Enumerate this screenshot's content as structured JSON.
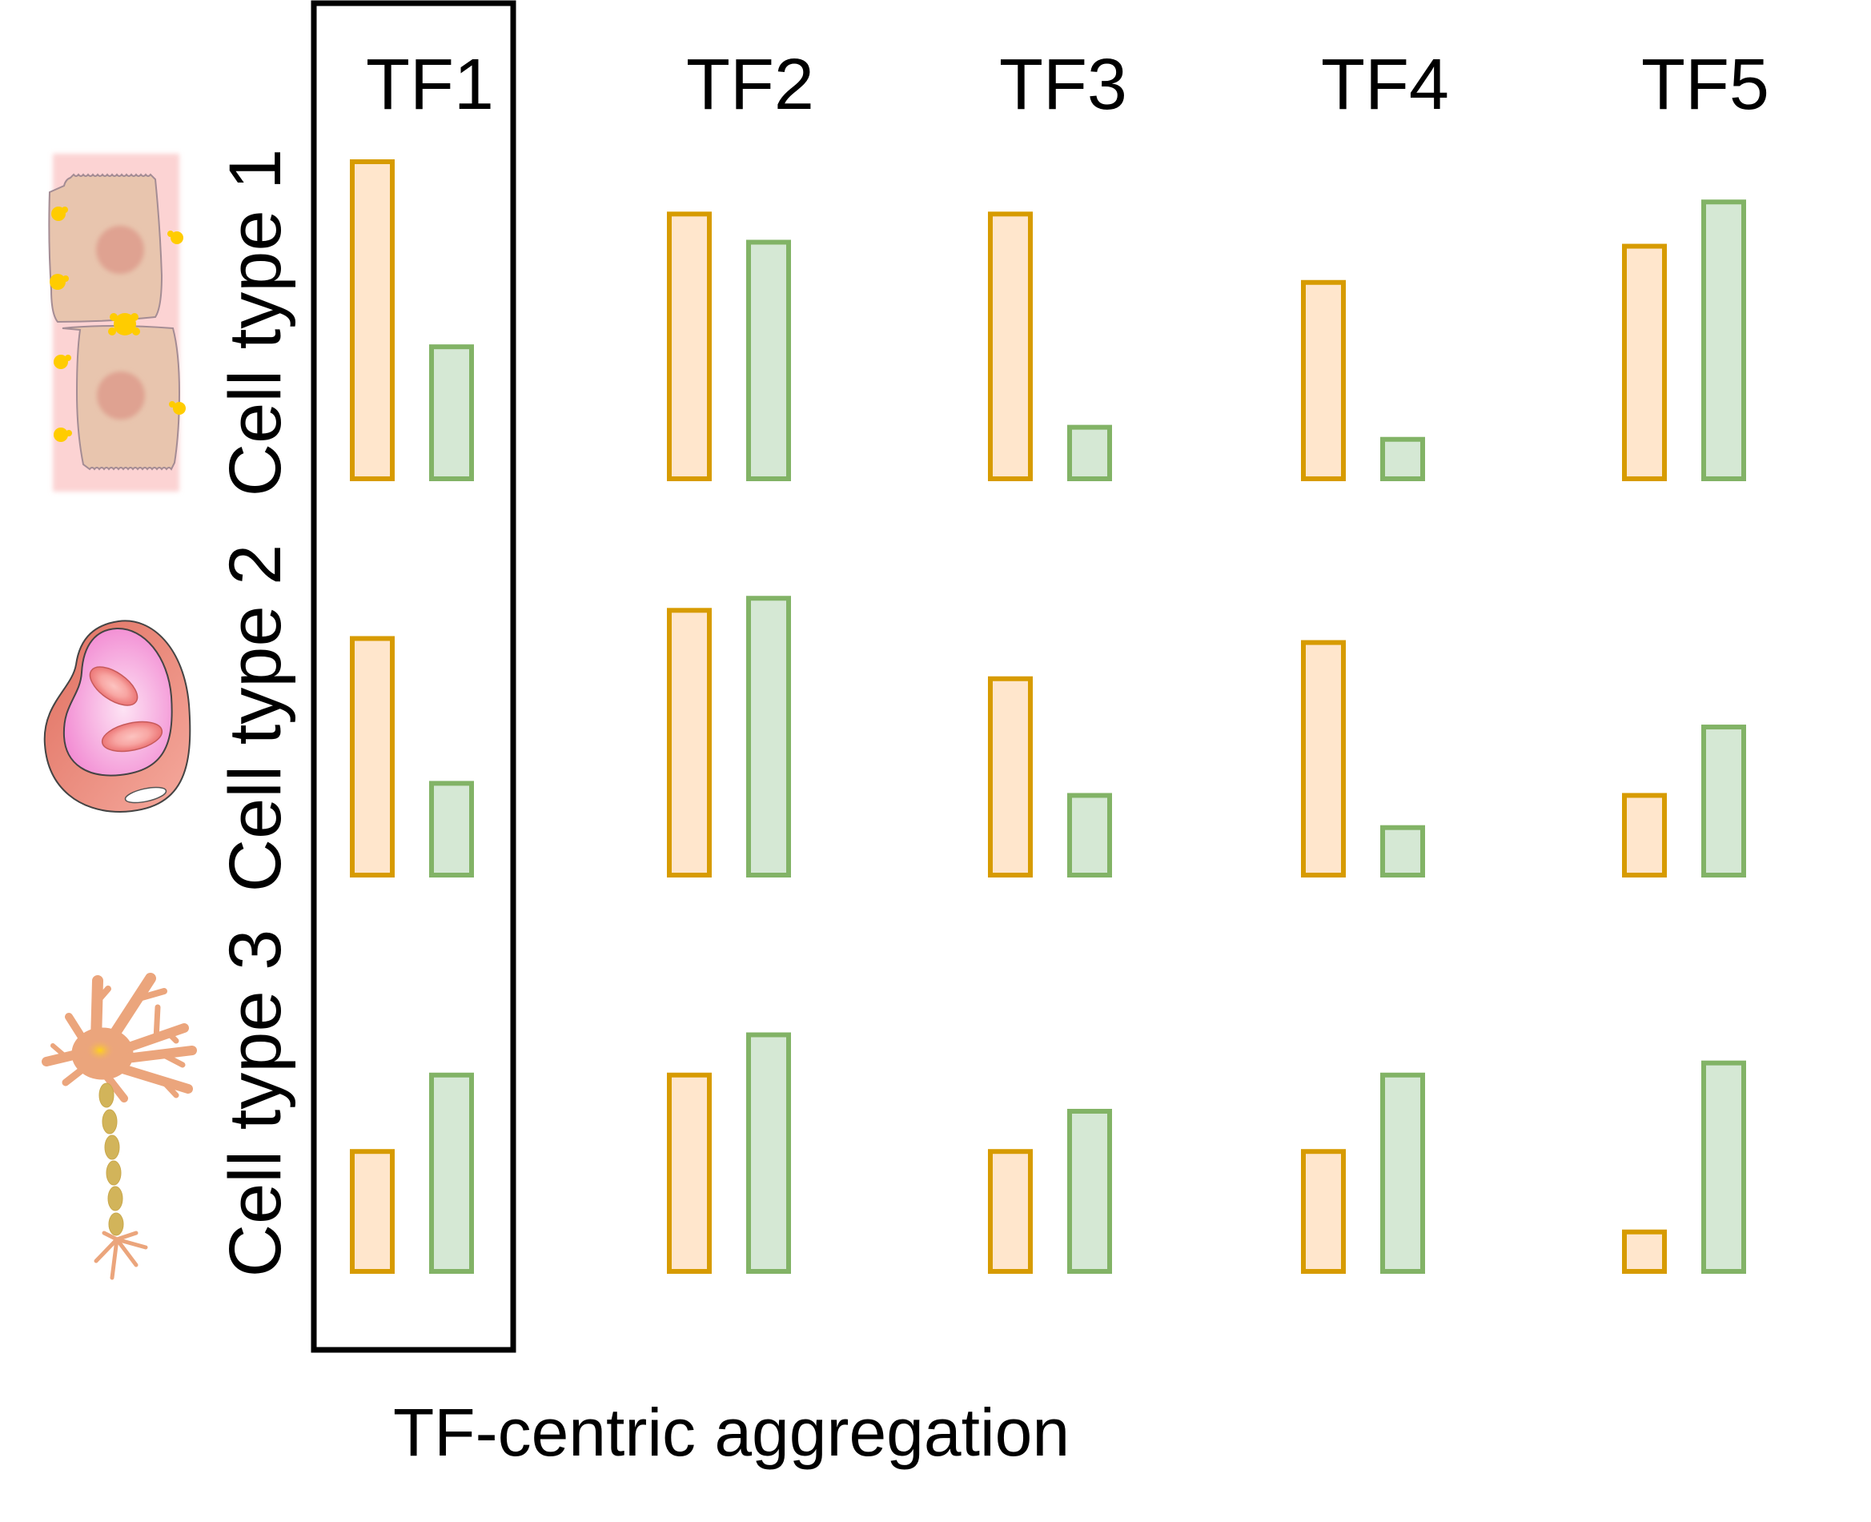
{
  "figure": {
    "caption": "TF-centric aggregation",
    "highlighted_column": "TF1",
    "colors": {
      "series_a_stroke": "#d79b00",
      "series_a_fill": "#ffe6cc",
      "series_b_stroke": "#82b366",
      "series_b_fill": "#d5e8d4",
      "highlight_box": "#000000"
    }
  },
  "chart_data": {
    "type": "bar",
    "title": "",
    "xlabel": "TF-centric aggregation",
    "ylabel": "",
    "columns": [
      "TF1",
      "TF2",
      "TF3",
      "TF4",
      "TF5"
    ],
    "rows": [
      {
        "label": "Cell type 1",
        "icon": "epithelial-cells-icon"
      },
      {
        "label": "Cell type 2",
        "icon": "blood-vessel-icon"
      },
      {
        "label": "Cell type 3",
        "icon": "neuron-icon"
      }
    ],
    "series": [
      {
        "name": "orange",
        "values": [
          [
            8.0,
            6.7,
            6.7,
            5.0,
            5.9
          ],
          [
            6.0,
            6.7,
            5.0,
            5.9,
            2.1
          ],
          [
            3.1,
            5.0,
            3.1,
            3.1,
            1.1
          ]
        ]
      },
      {
        "name": "green",
        "values": [
          [
            3.4,
            6.0,
            1.4,
            1.1,
            7.0
          ],
          [
            2.4,
            7.0,
            2.1,
            1.3,
            3.8
          ],
          [
            5.0,
            6.0,
            4.1,
            5.0,
            5.3
          ]
        ]
      }
    ],
    "ylim": [
      0,
      8
    ],
    "grid": false,
    "axes_visible": false,
    "legend": "none"
  }
}
